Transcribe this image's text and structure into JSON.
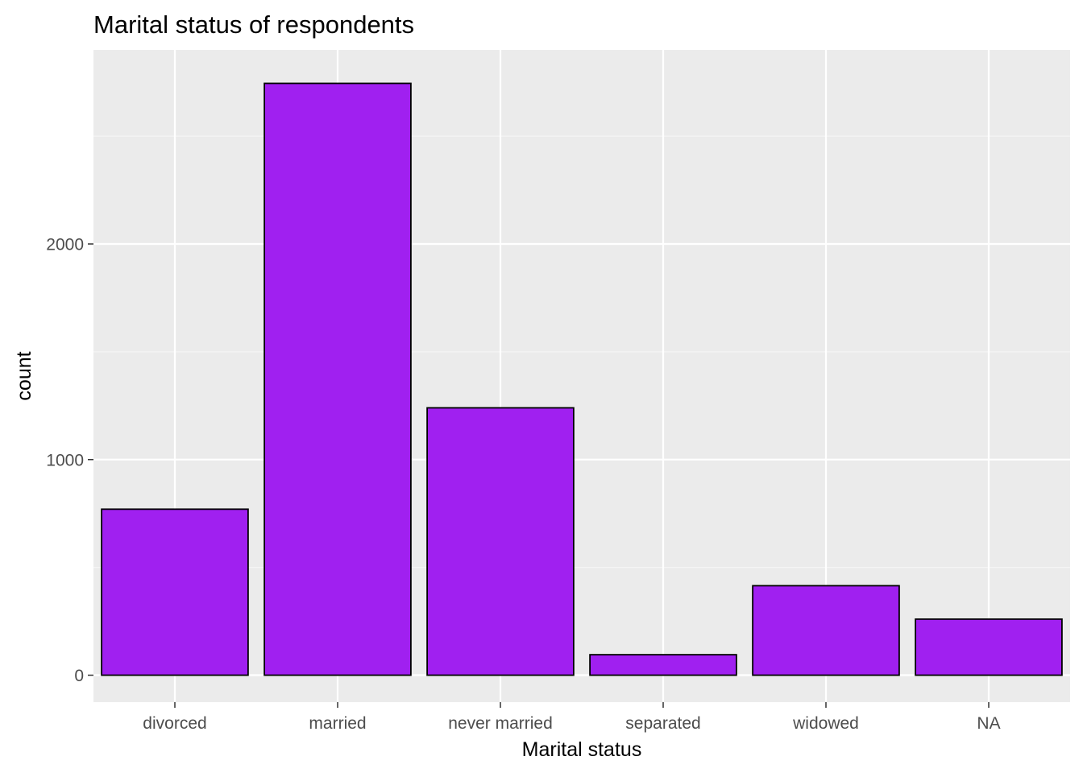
{
  "chart_data": {
    "type": "bar",
    "title": "Marital status of respondents",
    "xlabel": "Marital status",
    "ylabel": "count",
    "categories": [
      "divorced",
      "married",
      "never married",
      "separated",
      "widowed",
      "NA"
    ],
    "values": [
      770,
      2745,
      1240,
      95,
      415,
      260
    ],
    "ylim": [
      -125,
      2900
    ],
    "yticks": [
      0,
      1000,
      2000
    ],
    "ytick_labels": [
      "0",
      "1000",
      "2000"
    ],
    "grid": true,
    "legend": "none",
    "colors": {
      "bar_fill": "#A020F0",
      "bar_stroke": "#000000",
      "panel_background": "#EBEBEB",
      "grid_major": "#FFFFFF",
      "grid_minor": "#F5F5F5",
      "tick_label": "#4D4D4D",
      "axis_tick": "#333333"
    }
  }
}
